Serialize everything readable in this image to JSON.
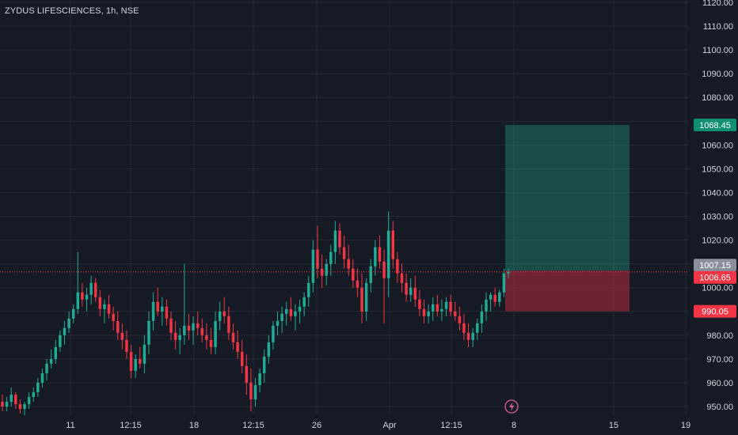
{
  "header": {
    "symbol": "ZYDUS LIFESCIENCES",
    "interval": "1h",
    "exchange": "NSE"
  },
  "chart_data": {
    "type": "candlestick",
    "symbol": "ZYDUS LIFESCIENCES, 1h, NSE",
    "y_ticks": [
      "1120.00",
      "1110.00",
      "1100.00",
      "1090.00",
      "1080.00",
      "1070.00",
      "1060.00",
      "1050.00",
      "1040.00",
      "1030.00",
      "1020.00",
      "1010.00",
      "1000.00",
      "990.00",
      "980.00",
      "970.00",
      "960.00",
      "950.00"
    ],
    "x_ticks": [
      "11",
      "12:15",
      "18",
      "12:15",
      "26",
      "Apr",
      "12:15",
      "8",
      "15",
      "19"
    ],
    "ylim": [
      945,
      1122
    ],
    "grid": true,
    "price_labels": {
      "take_profit": "1068.45",
      "entry": "1007.15",
      "last_price": "1006.65",
      "stop_loss": "990.05"
    },
    "long_position": {
      "entry": 1007.15,
      "target": 1068.45,
      "stop": 990.05
    },
    "last_price": 1006.65,
    "candles": [
      [
        952,
        955,
        948,
        950
      ],
      [
        950,
        954,
        948,
        952
      ],
      [
        952,
        958,
        950,
        955
      ],
      [
        955,
        956,
        949,
        951
      ],
      [
        951,
        953,
        947,
        949
      ],
      [
        949,
        952,
        946,
        951
      ],
      [
        951,
        956,
        949,
        954
      ],
      [
        954,
        958,
        952,
        956
      ],
      [
        956,
        962,
        954,
        960
      ],
      [
        960,
        966,
        958,
        964
      ],
      [
        964,
        970,
        961,
        968
      ],
      [
        968,
        974,
        966,
        970
      ],
      [
        970,
        978,
        968,
        975
      ],
      [
        975,
        982,
        973,
        980
      ],
      [
        980,
        986,
        976,
        983
      ],
      [
        983,
        990,
        981,
        987
      ],
      [
        987,
        993,
        985,
        991
      ],
      [
        991,
        1015,
        989,
        998
      ],
      [
        998,
        1002,
        992,
        995
      ],
      [
        995,
        1000,
        990,
        997
      ],
      [
        997,
        1005,
        993,
        1002
      ],
      [
        1002,
        1004,
        994,
        996
      ],
      [
        996,
        999,
        988,
        991
      ],
      [
        991,
        995,
        985,
        993
      ],
      [
        993,
        997,
        987,
        989
      ],
      [
        989,
        992,
        982,
        986
      ],
      [
        986,
        990,
        978,
        981
      ],
      [
        981,
        985,
        974,
        978
      ],
      [
        978,
        982,
        970,
        973
      ],
      [
        973,
        976,
        962,
        965
      ],
      [
        965,
        972,
        962,
        970
      ],
      [
        970,
        975,
        966,
        968
      ],
      [
        968,
        980,
        964,
        976
      ],
      [
        976,
        990,
        972,
        986
      ],
      [
        986,
        998,
        982,
        994
      ],
      [
        994,
        1000,
        988,
        990
      ],
      [
        990,
        996,
        984,
        992
      ],
      [
        992,
        995,
        984,
        987
      ],
      [
        987,
        990,
        978,
        981
      ],
      [
        981,
        986,
        974,
        978
      ],
      [
        978,
        983,
        972,
        980
      ],
      [
        980,
        1010,
        976,
        984
      ],
      [
        984,
        989,
        978,
        982
      ],
      [
        982,
        988,
        976,
        985
      ],
      [
        985,
        990,
        980,
        983
      ],
      [
        983,
        987,
        977,
        980
      ],
      [
        980,
        985,
        974,
        978
      ],
      [
        978,
        983,
        972,
        975
      ],
      [
        975,
        990,
        972,
        986
      ],
      [
        986,
        994,
        982,
        990
      ],
      [
        990,
        996,
        985,
        988
      ],
      [
        988,
        992,
        978,
        981
      ],
      [
        981,
        985,
        974,
        977
      ],
      [
        977,
        982,
        970,
        973
      ],
      [
        973,
        978,
        964,
        967
      ],
      [
        967,
        972,
        955,
        960
      ],
      [
        960,
        966,
        948,
        953
      ],
      [
        953,
        962,
        950,
        959
      ],
      [
        959,
        966,
        956,
        964
      ],
      [
        964,
        974,
        960,
        971
      ],
      [
        971,
        980,
        968,
        977
      ],
      [
        977,
        986,
        974,
        984
      ],
      [
        984,
        990,
        980,
        986
      ],
      [
        986,
        992,
        981,
        989
      ],
      [
        989,
        994,
        984,
        991
      ],
      [
        991,
        996,
        986,
        988
      ],
      [
        988,
        993,
        982,
        990
      ],
      [
        990,
        995,
        985,
        992
      ],
      [
        992,
        998,
        988,
        996
      ],
      [
        996,
        1005,
        992,
        1002
      ],
      [
        1002,
        1020,
        998,
        1016
      ],
      [
        1016,
        1026,
        1004,
        1008
      ],
      [
        1008,
        1014,
        1000,
        1005
      ],
      [
        1005,
        1012,
        1001,
        1010
      ],
      [
        1010,
        1018,
        1005,
        1015
      ],
      [
        1015,
        1028,
        1010,
        1024
      ],
      [
        1024,
        1027,
        1014,
        1017
      ],
      [
        1017,
        1022,
        1008,
        1012
      ],
      [
        1012,
        1018,
        1005,
        1008
      ],
      [
        1008,
        1012,
        1000,
        1003
      ],
      [
        1003,
        1008,
        996,
        1000
      ],
      [
        1000,
        1006,
        985,
        990
      ],
      [
        990,
        1004,
        986,
        1002
      ],
      [
        1002,
        1012,
        998,
        1009
      ],
      [
        1009,
        1020,
        1005,
        1017
      ],
      [
        1017,
        1022,
        1008,
        1011
      ],
      [
        1011,
        1016,
        985,
        1004
      ],
      [
        1004,
        1032,
        996,
        1024
      ],
      [
        1024,
        1028,
        1008,
        1012
      ],
      [
        1012,
        1015,
        1002,
        1006
      ],
      [
        1006,
        1010,
        998,
        1002
      ],
      [
        1002,
        1006,
        994,
        997
      ],
      [
        997,
        1004,
        994,
        1000
      ],
      [
        1000,
        1005,
        992,
        995
      ],
      [
        995,
        999,
        988,
        991
      ],
      [
        991,
        995,
        985,
        988
      ],
      [
        988,
        993,
        985,
        990
      ],
      [
        990,
        996,
        986,
        993
      ],
      [
        993,
        997,
        988,
        990
      ],
      [
        990,
        995,
        986,
        991
      ],
      [
        991,
        996,
        988,
        994
      ],
      [
        994,
        997,
        988,
        990
      ],
      [
        990,
        994,
        986,
        988
      ],
      [
        988,
        992,
        982,
        985
      ],
      [
        985,
        989,
        978,
        981
      ],
      [
        981,
        985,
        975,
        978
      ],
      [
        978,
        983,
        975,
        981
      ],
      [
        981,
        987,
        978,
        985
      ],
      [
        985,
        993,
        981,
        990
      ],
      [
        990,
        998,
        986,
        995
      ],
      [
        995,
        998,
        990,
        997
      ],
      [
        997,
        1000,
        992,
        994
      ],
      [
        994,
        999,
        992,
        998
      ],
      [
        998,
        1008,
        996,
        1006
      ],
      [
        1006,
        1008,
        1004,
        1006.65
      ]
    ]
  }
}
